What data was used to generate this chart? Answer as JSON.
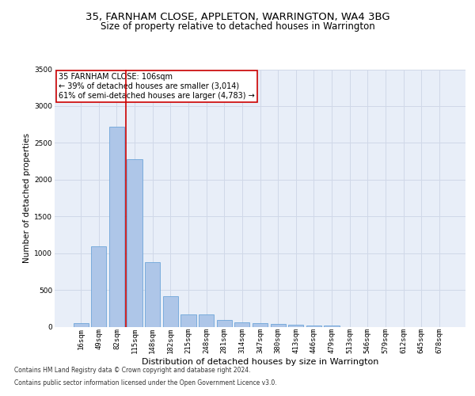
{
  "title_line1": "35, FARNHAM CLOSE, APPLETON, WARRINGTON, WA4 3BG",
  "title_line2": "Size of property relative to detached houses in Warrington",
  "xlabel": "Distribution of detached houses by size in Warrington",
  "ylabel": "Number of detached properties",
  "annotation_line1": "35 FARNHAM CLOSE: 106sqm",
  "annotation_line2": "← 39% of detached houses are smaller (3,014)",
  "annotation_line3": "61% of semi-detached houses are larger (4,783) →",
  "footer_line1": "Contains HM Land Registry data © Crown copyright and database right 2024.",
  "footer_line2": "Contains public sector information licensed under the Open Government Licence v3.0.",
  "bar_labels": [
    "16sqm",
    "49sqm",
    "82sqm",
    "115sqm",
    "148sqm",
    "182sqm",
    "215sqm",
    "248sqm",
    "281sqm",
    "314sqm",
    "347sqm",
    "380sqm",
    "413sqm",
    "446sqm",
    "479sqm",
    "513sqm",
    "546sqm",
    "579sqm",
    "612sqm",
    "645sqm",
    "678sqm"
  ],
  "bar_values": [
    50,
    1090,
    2720,
    2280,
    880,
    415,
    170,
    170,
    90,
    60,
    50,
    35,
    30,
    20,
    15,
    0,
    0,
    0,
    0,
    0,
    0
  ],
  "bar_color": "#aec6e8",
  "bar_edge_color": "#5b9bd5",
  "vline_color": "#cc0000",
  "ylim_max": 3500,
  "yticks": [
    0,
    500,
    1000,
    1500,
    2000,
    2500,
    3000,
    3500
  ],
  "grid_color": "#d0d8e8",
  "bg_color": "#e8eef8",
  "annotation_box_color": "#cc0000",
  "title1_fontsize": 9.5,
  "title2_fontsize": 8.5,
  "ylabel_fontsize": 7.5,
  "xlabel_fontsize": 8,
  "tick_fontsize": 6.5,
  "footer_fontsize": 5.5,
  "ann_fontsize": 7
}
